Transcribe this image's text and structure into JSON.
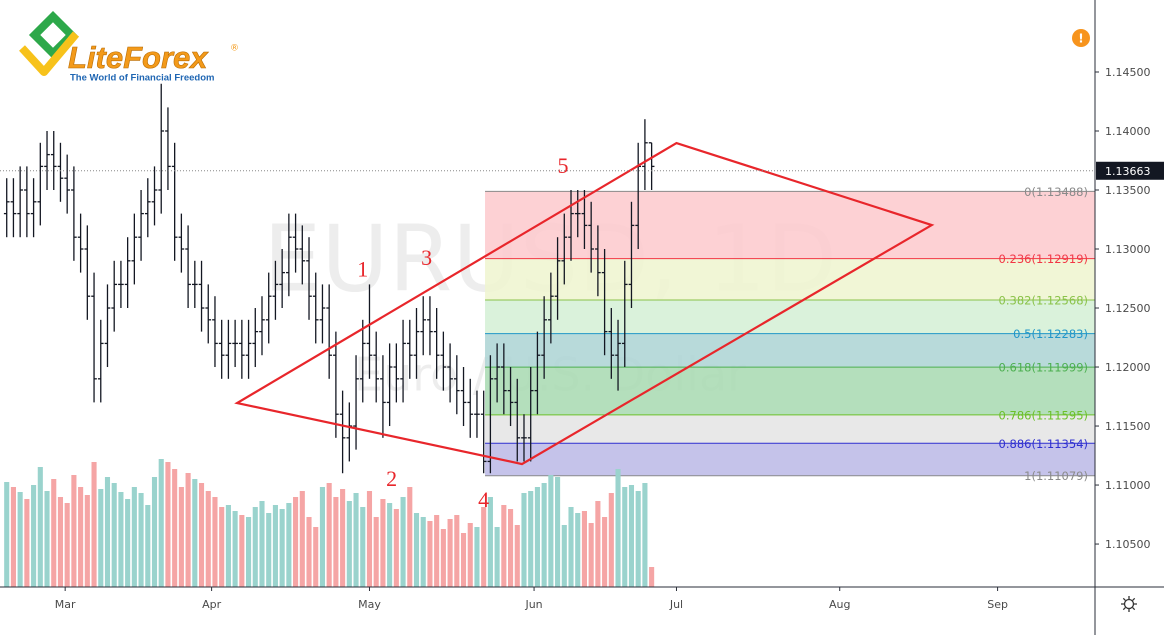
{
  "chart_data": {
    "type": "ohlc",
    "symbol": "EURUSD, 1D",
    "description": "Euro / U.S. Dollar",
    "xlim": [
      -1,
      162
    ],
    "xticks": [
      {
        "value": 8.7,
        "label": "Mar"
      },
      {
        "value": 30.5,
        "label": "Apr"
      },
      {
        "value": 54,
        "label": "May"
      },
      {
        "value": 78.5,
        "label": "Jun"
      },
      {
        "value": 99.7,
        "label": "Jul"
      },
      {
        "value": 124,
        "label": "Aug"
      },
      {
        "value": 147.5,
        "label": "Sep"
      }
    ],
    "ylim": [
      1.10136,
      1.1511
    ],
    "yticks": [
      {
        "value": 1.145,
        "label": "1.14500"
      },
      {
        "value": 1.14,
        "label": "1.14000"
      },
      {
        "value": 1.135,
        "label": "1.13500"
      },
      {
        "value": 1.13,
        "label": "1.13000"
      },
      {
        "value": 1.125,
        "label": "1.12500"
      },
      {
        "value": 1.12,
        "label": "1.12000"
      },
      {
        "value": 1.115,
        "label": "1.11500"
      },
      {
        "value": 1.11,
        "label": "1.11000"
      },
      {
        "value": 1.105,
        "label": "1.10500"
      }
    ],
    "bar_color": "#131722",
    "up_color": "#9ad3cd",
    "down_color": "#f5a5a5",
    "open": [
      1.133,
      1.134,
      1.133,
      1.135,
      1.133,
      1.134,
      1.137,
      1.138,
      1.137,
      1.136,
      1.135,
      1.131,
      1.13,
      1.126,
      1.119,
      1.122,
      1.125,
      1.127,
      1.127,
      1.129,
      1.131,
      1.133,
      1.134,
      1.135,
      1.14,
      1.137,
      1.131,
      1.13,
      1.127,
      1.127,
      1.125,
      1.124,
      1.122,
      1.121,
      1.122,
      1.122,
      1.121,
      1.122,
      1.123,
      1.124,
      1.126,
      1.127,
      1.128,
      1.131,
      1.13,
      1.129,
      1.126,
      1.124,
      1.125,
      1.121,
      1.116,
      1.114,
      1.115,
      1.119,
      1.122,
      1.121,
      1.119,
      1.117,
      1.12,
      1.119,
      1.122,
      1.121,
      1.123,
      1.124,
      1.123,
      1.121,
      1.12,
      1.119,
      1.118,
      1.117,
      1.116,
      1.116,
      1.112,
      1.119,
      1.12,
      1.118,
      1.117,
      1.114,
      1.114,
      1.118,
      1.121,
      1.124,
      1.126,
      1.129,
      1.131,
      1.133,
      1.133,
      1.132,
      1.13,
      1.128,
      1.123,
      1.121,
      1.122,
      1.127,
      1.132,
      1.137,
      1.139
    ],
    "high": [
      1.136,
      1.136,
      1.137,
      1.137,
      1.136,
      1.139,
      1.14,
      1.14,
      1.139,
      1.138,
      1.137,
      1.133,
      1.132,
      1.128,
      1.124,
      1.127,
      1.129,
      1.129,
      1.131,
      1.133,
      1.135,
      1.136,
      1.137,
      1.144,
      1.142,
      1.139,
      1.133,
      1.132,
      1.129,
      1.129,
      1.127,
      1.126,
      1.124,
      1.124,
      1.124,
      1.124,
      1.124,
      1.125,
      1.126,
      1.128,
      1.129,
      1.13,
      1.133,
      1.133,
      1.132,
      1.131,
      1.128,
      1.127,
      1.127,
      1.123,
      1.118,
      1.117,
      1.121,
      1.124,
      1.127,
      1.123,
      1.121,
      1.122,
      1.122,
      1.124,
      1.124,
      1.125,
      1.126,
      1.126,
      1.125,
      1.123,
      1.122,
      1.121,
      1.12,
      1.119,
      1.118,
      1.118,
      1.121,
      1.122,
      1.122,
      1.12,
      1.119,
      1.116,
      1.12,
      1.123,
      1.126,
      1.128,
      1.131,
      1.133,
      1.135,
      1.135,
      1.135,
      1.134,
      1.132,
      1.13,
      1.125,
      1.124,
      1.129,
      1.134,
      1.139,
      1.141,
      1.139
    ],
    "low": [
      1.131,
      1.131,
      1.131,
      1.131,
      1.131,
      1.132,
      1.135,
      1.135,
      1.134,
      1.133,
      1.129,
      1.128,
      1.124,
      1.117,
      1.117,
      1.12,
      1.123,
      1.125,
      1.125,
      1.127,
      1.129,
      1.131,
      1.132,
      1.133,
      1.135,
      1.129,
      1.128,
      1.125,
      1.125,
      1.123,
      1.122,
      1.12,
      1.119,
      1.119,
      1.12,
      1.119,
      1.119,
      1.12,
      1.121,
      1.122,
      1.124,
      1.125,
      1.126,
      1.128,
      1.127,
      1.124,
      1.122,
      1.122,
      1.119,
      1.114,
      1.111,
      1.112,
      1.113,
      1.117,
      1.119,
      1.117,
      1.114,
      1.115,
      1.117,
      1.117,
      1.119,
      1.119,
      1.121,
      1.121,
      1.119,
      1.118,
      1.117,
      1.116,
      1.115,
      1.114,
      1.114,
      1.111,
      1.111,
      1.117,
      1.116,
      1.115,
      1.112,
      1.112,
      1.112,
      1.116,
      1.119,
      1.122,
      1.124,
      1.127,
      1.129,
      1.131,
      1.13,
      1.128,
      1.126,
      1.121,
      1.119,
      1.118,
      1.12,
      1.125,
      1.13,
      1.135,
      1.135
    ],
    "close": [
      1.134,
      1.133,
      1.135,
      1.133,
      1.134,
      1.137,
      1.138,
      1.137,
      1.136,
      1.135,
      1.131,
      1.13,
      1.126,
      1.119,
      1.122,
      1.125,
      1.127,
      1.127,
      1.129,
      1.131,
      1.133,
      1.134,
      1.135,
      1.14,
      1.137,
      1.131,
      1.13,
      1.127,
      1.127,
      1.125,
      1.124,
      1.122,
      1.121,
      1.122,
      1.122,
      1.121,
      1.122,
      1.123,
      1.124,
      1.126,
      1.127,
      1.128,
      1.131,
      1.13,
      1.129,
      1.126,
      1.124,
      1.125,
      1.121,
      1.116,
      1.114,
      1.115,
      1.119,
      1.122,
      1.121,
      1.119,
      1.117,
      1.12,
      1.119,
      1.122,
      1.121,
      1.123,
      1.124,
      1.123,
      1.121,
      1.12,
      1.119,
      1.118,
      1.117,
      1.116,
      1.116,
      1.112,
      1.119,
      1.12,
      1.118,
      1.117,
      1.114,
      1.114,
      1.118,
      1.121,
      1.124,
      1.126,
      1.129,
      1.131,
      1.133,
      1.133,
      1.132,
      1.13,
      1.128,
      1.123,
      1.121,
      1.122,
      1.127,
      1.132,
      1.137,
      1.139,
      1.137
    ],
    "volume": [
      105,
      100,
      95,
      88,
      102,
      120,
      96,
      108,
      90,
      84,
      112,
      100,
      92,
      125,
      98,
      110,
      104,
      95,
      88,
      100,
      94,
      82,
      110,
      128,
      125,
      118,
      100,
      114,
      108,
      104,
      96,
      90,
      80,
      82,
      76,
      72,
      70,
      80,
      86,
      74,
      82,
      78,
      84,
      90,
      96,
      70,
      60,
      100,
      104,
      90,
      98,
      86,
      94,
      80,
      96,
      70,
      88,
      84,
      78,
      90,
      100,
      74,
      70,
      66,
      72,
      58,
      68,
      72,
      54,
      64,
      60,
      80,
      90,
      60,
      82,
      78,
      62,
      94,
      96,
      100,
      104,
      112,
      110,
      62,
      80,
      74,
      76,
      64,
      86,
      70,
      94,
      118,
      100,
      102,
      96,
      104,
      20
    ],
    "volume_ylim": [
      0,
      587
    ],
    "last_price": 1.13663,
    "fib": {
      "x": [
        71.2,
        162
      ],
      "levels": [
        {
          "value": 1.13488,
          "label": "0(1.13488)",
          "color": "#8a8a8a"
        },
        {
          "value": 1.12919,
          "label": "0.236(1.12919)",
          "color": "#f23645"
        },
        {
          "value": 1.12568,
          "label": "0.382(1.12568)",
          "color": "#8bc34a"
        },
        {
          "value": 1.12283,
          "label": "0.5(1.12283)",
          "color": "#2196c8"
        },
        {
          "value": 1.11999,
          "label": "0.618(1.11999)",
          "color": "#4caf50"
        },
        {
          "value": 1.11595,
          "label": "0.786(1.11595)",
          "color": "#6cc02a"
        },
        {
          "value": 1.11354,
          "label": "0.886(1.11354)",
          "color": "#2f2fd0"
        },
        {
          "value": 1.11079,
          "label": "1(1.11079)",
          "color": "#8a8a8a"
        }
      ],
      "fills": [
        "#fdc9cc",
        "#eef4cf",
        "#d3f0d5",
        "#acd4d3",
        "#a7d9b0",
        "#e4e4e4",
        "#bbb8e6"
      ]
    },
    "pattern": {
      "color": "#e8262b",
      "x": [
        34.3,
        76.7,
        137.7,
        99.7
      ],
      "y": [
        1.11695,
        1.11178,
        1.13203,
        1.13898
      ]
    },
    "waves": [
      {
        "text": "1",
        "x": 53,
        "y": 1.1281
      },
      {
        "text": "2",
        "x": 57.3,
        "y": 1.11034
      },
      {
        "text": "3",
        "x": 62.5,
        "y": 1.12907
      },
      {
        "text": "4",
        "x": 71,
        "y": 1.10856
      },
      {
        "text": "5",
        "x": 82.8,
        "y": 1.13686
      }
    ],
    "wave_color": "#e8262b"
  },
  "logo": {
    "name": "LiteForex",
    "mark": "®",
    "tagline": "The World of Financial Freedom"
  },
  "alert": "!"
}
